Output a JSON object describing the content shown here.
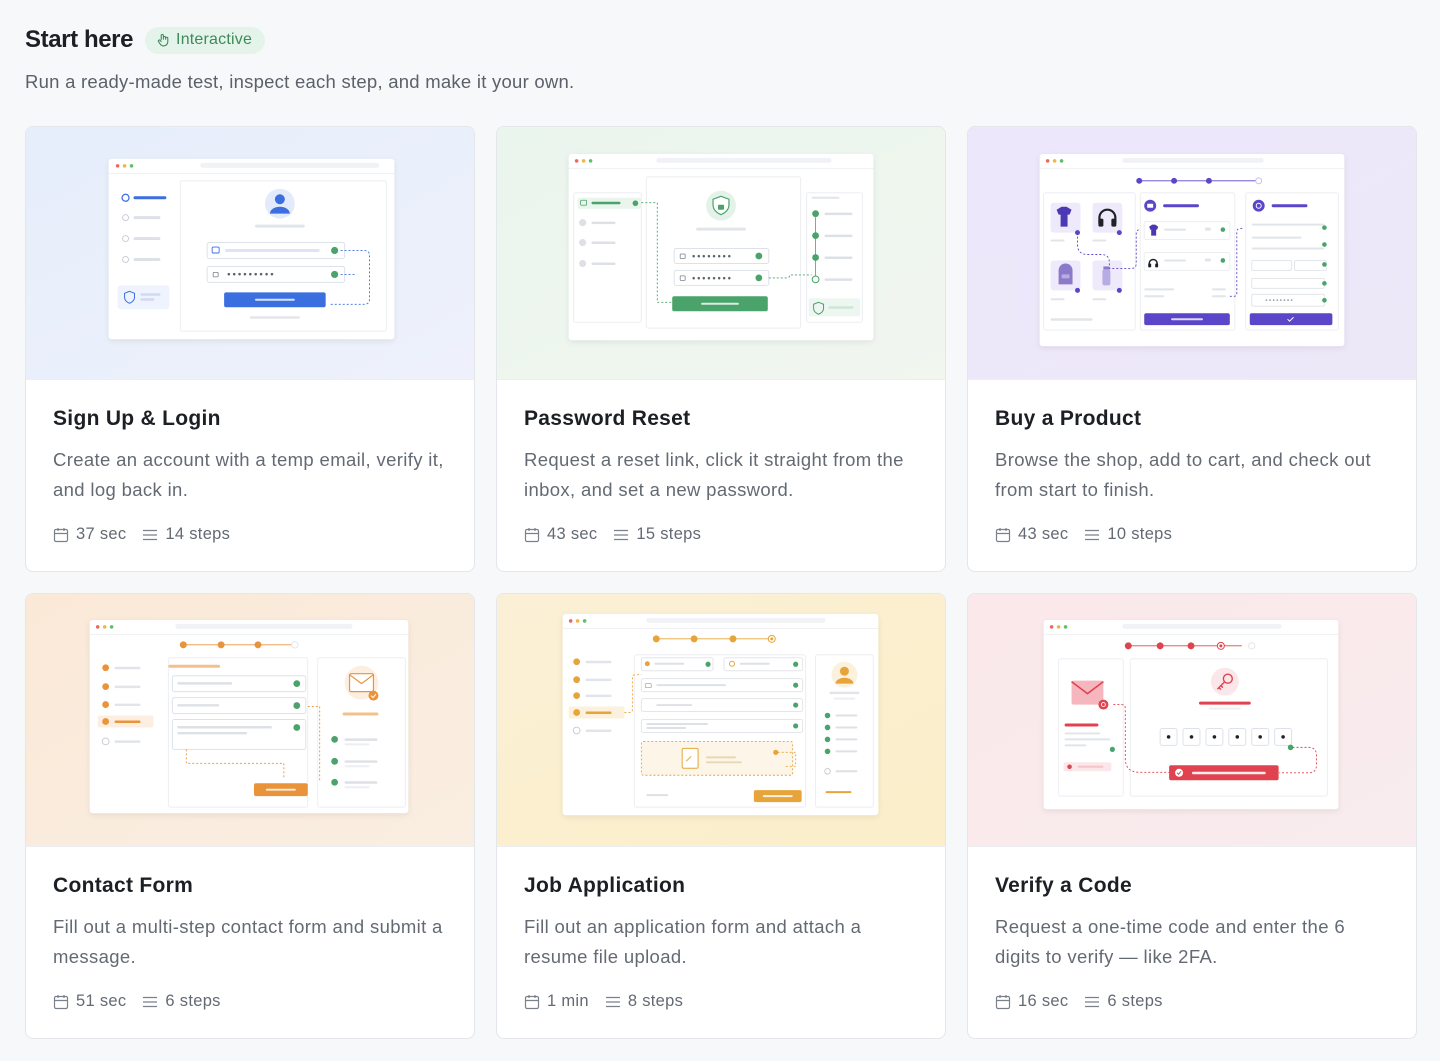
{
  "header": {
    "title": "Start here",
    "badge": "Interactive",
    "subtitle": "Run a ready-made test, inspect each step, and make it your own."
  },
  "colors": {
    "blue": "#3b6fe0",
    "green": "#4aa36a",
    "purple": "#5b45c9",
    "orange": "#e9933a",
    "amber": "#e6a43a",
    "red": "#e0434f"
  },
  "cards": [
    {
      "title": "Sign Up & Login",
      "description": "Create an account with a temp email, verify it, and log back in.",
      "duration": "37 sec",
      "steps": "14 steps",
      "icons": [
        "calendar-icon",
        "list-icon"
      ]
    },
    {
      "title": "Password Reset",
      "description": "Request a reset link, click it straight from the inbox, and set a new password.",
      "duration": "43 sec",
      "steps": "15 steps",
      "icons": [
        "calendar-icon",
        "list-icon"
      ]
    },
    {
      "title": "Buy a Product",
      "description": "Browse the shop, add to cart, and check out from start to finish.",
      "duration": "43 sec",
      "steps": "10 steps",
      "icons": [
        "calendar-icon",
        "list-icon"
      ]
    },
    {
      "title": "Contact Form",
      "description": "Fill out a multi-step contact form and submit a message.",
      "duration": "51 sec",
      "steps": "6 steps",
      "icons": [
        "calendar-icon",
        "list-icon"
      ]
    },
    {
      "title": "Job Application",
      "description": "Fill out an application form and attach a resume file upload.",
      "duration": "1 min",
      "steps": "8 steps",
      "icons": [
        "calendar-icon",
        "list-icon"
      ]
    },
    {
      "title": "Verify a Code",
      "description": "Request a one-time code and enter the 6 digits to verify — like 2FA.",
      "duration": "16 sec",
      "steps": "6 steps",
      "icons": [
        "calendar-icon",
        "list-icon"
      ]
    }
  ]
}
